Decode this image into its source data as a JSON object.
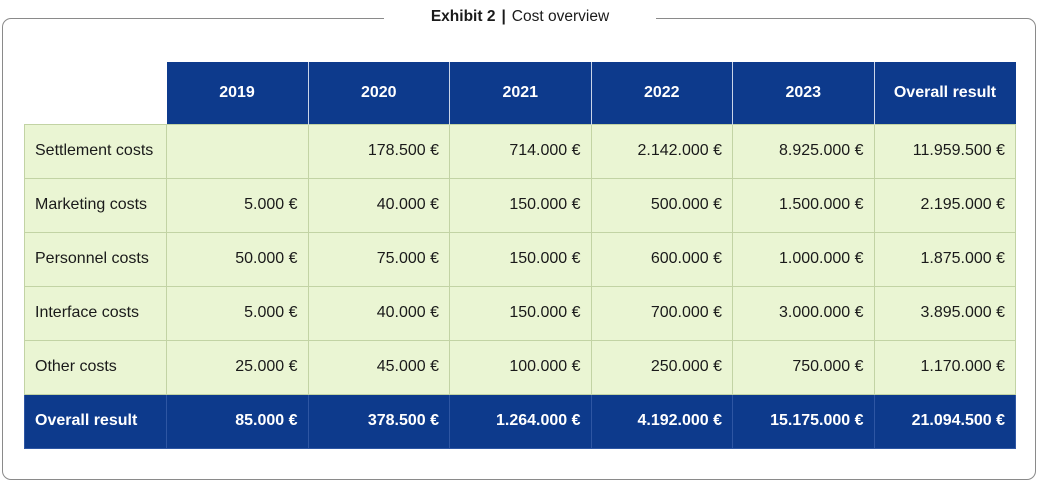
{
  "exhibit": {
    "label": "Exhibit 2",
    "separator": "|",
    "title": "Cost overview"
  },
  "table": {
    "headers": [
      "2019",
      "2020",
      "2021",
      "2022",
      "2023",
      "Overall result"
    ],
    "rows": [
      {
        "label": "Settlement costs",
        "cells": [
          "",
          "178.500 €",
          "714.000 €",
          "2.142.000 €",
          "8.925.000 €",
          "11.959.500 €"
        ]
      },
      {
        "label": "Marketing costs",
        "cells": [
          "5.000 €",
          "40.000 €",
          "150.000 €",
          "500.000 €",
          "1.500.000 €",
          "2.195.000 €"
        ]
      },
      {
        "label": "Personnel costs",
        "cells": [
          "50.000 €",
          "75.000 €",
          "150.000 €",
          "600.000 €",
          "1.000.000 €",
          "1.875.000 €"
        ]
      },
      {
        "label": "Interface costs",
        "cells": [
          "5.000 €",
          "40.000 €",
          "150.000 €",
          "700.000 €",
          "3.000.000 €",
          "3.895.000 €"
        ]
      },
      {
        "label": "Other costs",
        "cells": [
          "25.000 €",
          "45.000 €",
          "100.000 €",
          "250.000 €",
          "750.000 €",
          "1.170.000 €"
        ]
      }
    ],
    "total": {
      "label": "Overall result",
      "cells": [
        "85.000 €",
        "378.500 €",
        "1.264.000 €",
        "4.192.000 €",
        "15.175.000 €",
        "21.094.500 €"
      ]
    }
  },
  "colors": {
    "header_bg": "#0d3a8c",
    "body_bg": "#eaf5d3",
    "frame_border": "#8a8a8a"
  }
}
